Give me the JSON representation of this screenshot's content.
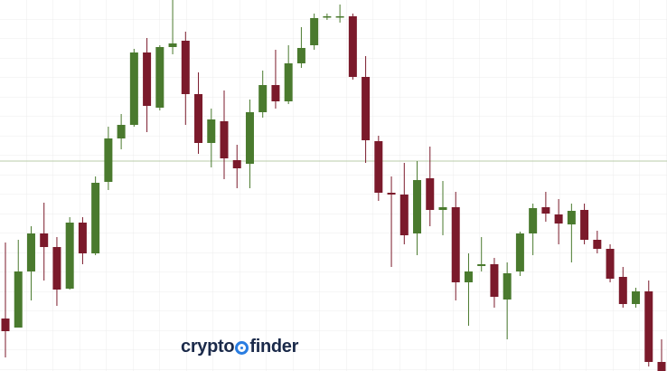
{
  "chart_data": {
    "type": "candlestick",
    "ylim": [
      0,
      410
    ],
    "up_color": "#4a7a2e",
    "down_color": "#7b1a2b",
    "price_line": 232,
    "price_line_color": "#b8cca8",
    "grid": true,
    "open": [
      58,
      48,
      110,
      152,
      137,
      91,
      164,
      130,
      209,
      257,
      272,
      352,
      291,
      358,
      365,
      306,
      252,
      276,
      233,
      229,
      286,
      316,
      298,
      340,
      360,
      391,
      391,
      392,
      325,
      254,
      197,
      195,
      152,
      213,
      178,
      181,
      98,
      116,
      118,
      79,
      110,
      152,
      181,
      173,
      162,
      178,
      145,
      135,
      104,
      74,
      88,
      10
    ],
    "high": [
      142,
      145,
      160,
      186,
      148,
      170,
      170,
      215,
      270,
      284,
      356,
      368,
      360,
      410,
      375,
      330,
      290,
      310,
      250,
      300,
      332,
      355,
      360,
      380,
      395,
      395,
      405,
      395,
      348,
      260,
      215,
      230,
      232,
      248,
      210,
      198,
      130,
      148,
      125,
      120,
      154,
      185,
      198,
      190,
      185,
      185,
      155,
      140,
      115,
      92,
      100,
      35
    ],
    "low": [
      15,
      48,
      78,
      100,
      72,
      90,
      118,
      128,
      200,
      245,
      270,
      264,
      288,
      350,
      272,
      240,
      225,
      212,
      202,
      202,
      280,
      290,
      295,
      335,
      355,
      388,
      385,
      322,
      230,
      188,
      115,
      140,
      128,
      160,
      150,
      78,
      50,
      110,
      70,
      35,
      105,
      128,
      165,
      140,
      120,
      140,
      130,
      98,
      70,
      70,
      5,
      0
    ],
    "close": [
      44,
      110,
      152,
      137,
      90,
      164,
      130,
      208,
      257,
      272,
      352,
      293,
      358,
      362,
      306,
      252,
      278,
      235,
      224,
      286,
      316,
      298,
      340,
      357,
      390,
      392,
      392,
      325,
      255,
      197,
      195,
      150,
      211,
      178,
      181,
      98,
      110,
      118,
      82,
      108,
      152,
      180,
      174,
      163,
      177,
      145,
      135,
      102,
      74,
      88,
      10,
      0
    ]
  },
  "logo": {
    "text_left": "crypto",
    "text_right": "finder"
  }
}
